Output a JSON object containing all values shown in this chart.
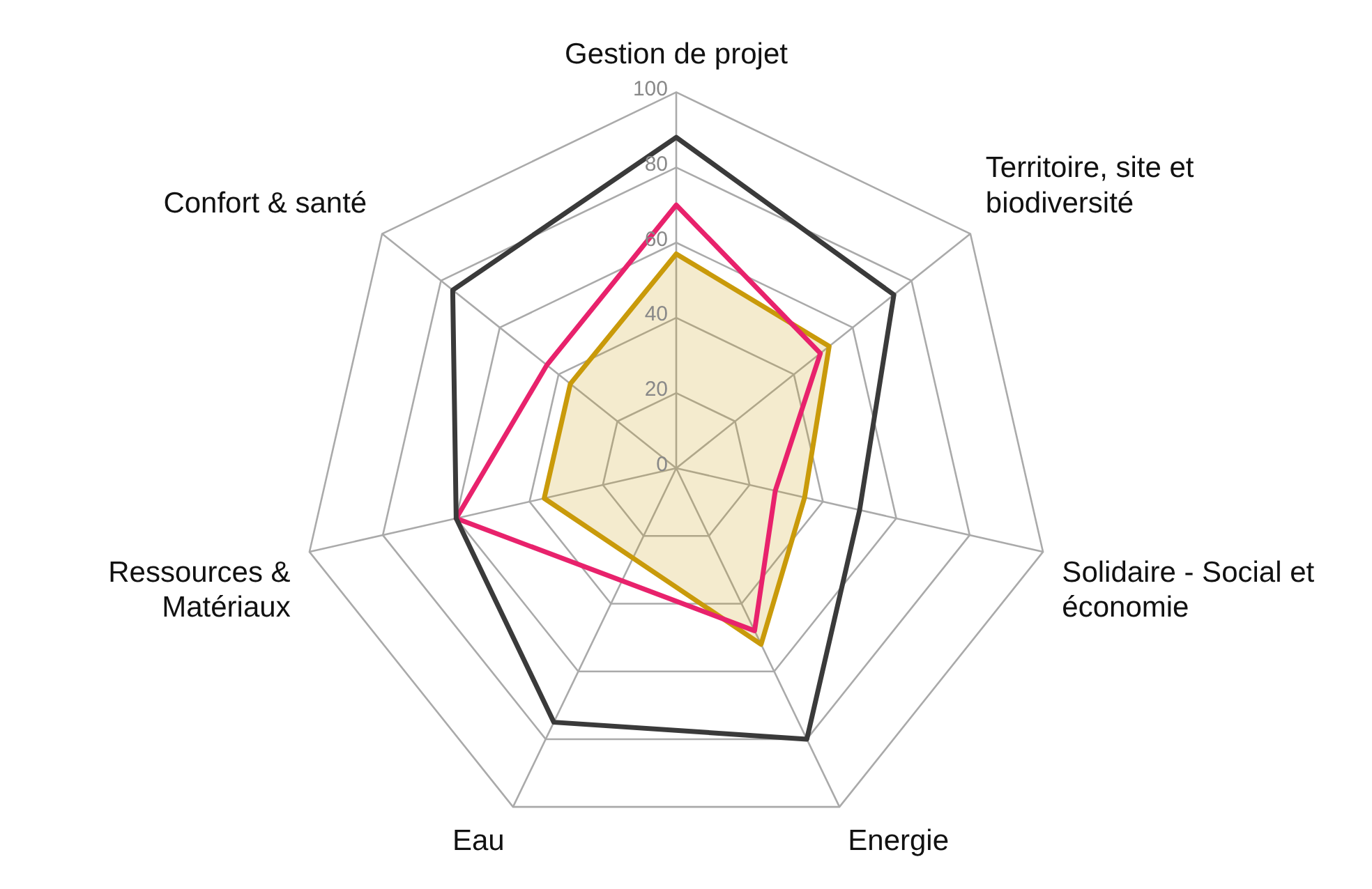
{
  "chart_data": {
    "type": "radar",
    "categories": [
      "Gestion de projet",
      "Territoire, site et biodiversité",
      "Solidaire - Social et économie",
      "Energie",
      "Eau",
      "Ressources & Matériaux",
      "Confort & santé"
    ],
    "ylim": [
      0,
      100
    ],
    "yticks": [
      0,
      20,
      40,
      60,
      80,
      100
    ],
    "grid": true,
    "marker": "none",
    "series": [
      {
        "color": "#3a3a3a",
        "values": [
          88,
          74,
          50,
          80,
          75,
          60,
          76
        ]
      },
      {
        "color": "#e8226c",
        "values": [
          70,
          49,
          27,
          48,
          null,
          60,
          44
        ]
      },
      {
        "type": "area",
        "color": "#c99a0a",
        "values": [
          57,
          52,
          35,
          52,
          null,
          36,
          36
        ]
      }
    ]
  }
}
